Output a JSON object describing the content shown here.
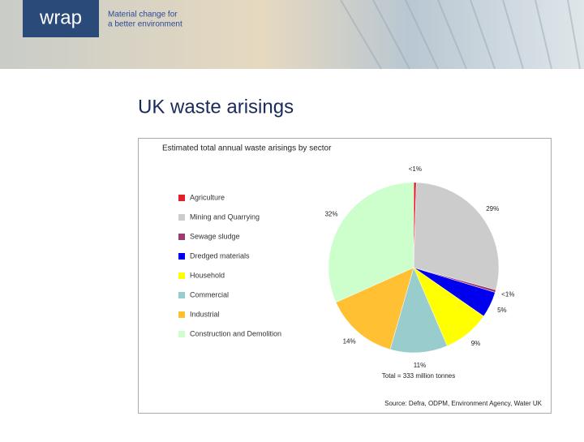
{
  "header": {
    "logo": "wrap",
    "tagline": [
      "Material change for",
      "a better environment"
    ]
  },
  "slide_title": "UK waste arisings",
  "chart_data": {
    "type": "pie",
    "title": "Estimated total annual waste arisings by sector",
    "categories": [
      "Agriculture",
      "Mining and Quarrying",
      "Sewage sludge",
      "Dredged materials",
      "Household",
      "Commercial",
      "Industrial",
      "Construction and Demolition"
    ],
    "values": [
      0.5,
      29,
      0.5,
      5,
      9,
      11,
      14,
      32
    ],
    "value_labels": [
      "<1%",
      "29%",
      "<1%",
      "5%",
      "9%",
      "11%",
      "14%",
      "32%"
    ],
    "colors": [
      "#e0202a",
      "#cccccc",
      "#9b3c6e",
      "#0000ee",
      "#ffff00",
      "#99cccc",
      "#ffc133",
      "#ccffcc"
    ],
    "legend": "left",
    "annotation": "Total = 333 million tonnes",
    "source": "Source: Defra, ODPM, Environment Agency, Water UK"
  }
}
